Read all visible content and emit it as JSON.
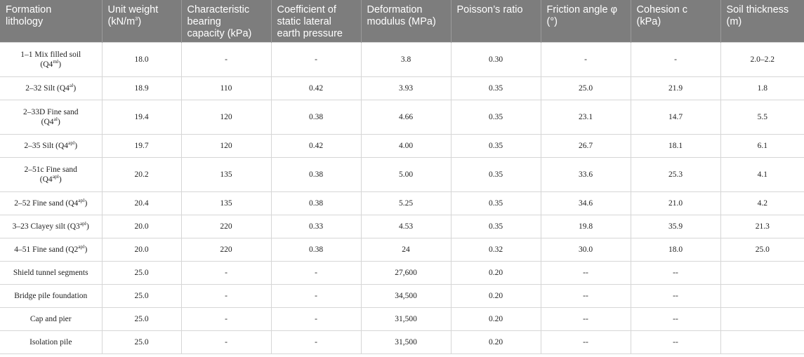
{
  "headers": [
    {
      "line1": "Formation",
      "line2": "lithology",
      "line3": ""
    },
    {
      "line1": "Unit weight",
      "line2": "(kN/m",
      "sup": "3",
      "after": ")"
    },
    {
      "line1": "Characteristic",
      "line2": "bearing",
      "line3": "capacity (kPa)"
    },
    {
      "line1": "Coefficient of",
      "line2": "static lateral",
      "line3": "earth pressure"
    },
    {
      "line1": "Deformation",
      "line2": "modulus (MPa)",
      "line3": ""
    },
    {
      "line1": "Poisson’s ratio",
      "line2": "",
      "line3": ""
    },
    {
      "line1": "Friction angle φ",
      "line2": "(°)",
      "line3": ""
    },
    {
      "line1": "Cohesion c",
      "line2": "(kPa)",
      "line3": ""
    },
    {
      "line1": "Soil thickness",
      "line2": "(m)",
      "line3": ""
    }
  ],
  "rows": [
    {
      "tall": true,
      "name": "1–1 Mix filled soil",
      "name2": "(Q4",
      "sup": "ml",
      "name_after": ")",
      "cells": [
        "18.0",
        "-",
        "-",
        "3.8",
        "0.30",
        "-",
        "-",
        "2.0–2.2"
      ]
    },
    {
      "tall": false,
      "name": "2–32 Silt (Q4",
      "name2": "",
      "sup": "al",
      "name_after": ")",
      "cells": [
        "18.9",
        "110",
        "0.42",
        "3.93",
        "0.35",
        "25.0",
        "21.9",
        "1.8"
      ]
    },
    {
      "tall": true,
      "name": "2–33D Fine sand",
      "name2": "(Q4",
      "sup": "al",
      "name_after": ")",
      "cells": [
        "19.4",
        "120",
        "0.38",
        "4.66",
        "0.35",
        "23.1",
        "14.7",
        "5.5"
      ]
    },
    {
      "tall": false,
      "name": "2–35 Silt (Q4",
      "name2": "",
      "sup": "apl",
      "name_after": ")",
      "cells": [
        "19.7",
        "120",
        "0.42",
        "4.00",
        "0.35",
        "26.7",
        "18.1",
        "6.1"
      ]
    },
    {
      "tall": true,
      "name": "2–51c Fine sand",
      "name2": "(Q4",
      "sup": "apl",
      "name_after": ")",
      "cells": [
        "20.2",
        "135",
        "0.38",
        "5.00",
        "0.35",
        "33.6",
        "25.3",
        "4.1"
      ]
    },
    {
      "tall": false,
      "name": "2–52 Fine sand (Q4",
      "name2": "",
      "sup": "apl",
      "name_after": ")",
      "cells": [
        "20.4",
        "135",
        "0.38",
        "5.25",
        "0.35",
        "34.6",
        "21.0",
        "4.2"
      ]
    },
    {
      "tall": false,
      "name": "3–23 Clayey silt (Q3",
      "name2": "",
      "sup": "apl",
      "name_after": ")",
      "cells": [
        "20.0",
        "220",
        "0.33",
        "4.53",
        "0.35",
        "19.8",
        "35.9",
        "21.3"
      ]
    },
    {
      "tall": false,
      "name": "4–51 Fine sand (Q2",
      "name2": "",
      "sup": "apl",
      "name_after": ")",
      "cells": [
        "20.0",
        "220",
        "0.38",
        "24",
        "0.32",
        "30.0",
        "18.0",
        "25.0"
      ]
    },
    {
      "tall": false,
      "name": "Shield tunnel segments",
      "name2": "",
      "sup": "",
      "name_after": "",
      "cells": [
        "25.0",
        "-",
        "-",
        "27,600",
        "0.20",
        "--",
        "--",
        ""
      ]
    },
    {
      "tall": false,
      "name": "Bridge pile foundation",
      "name2": "",
      "sup": "",
      "name_after": "",
      "cells": [
        "25.0",
        "-",
        "-",
        "34,500",
        "0.20",
        "--",
        "--",
        ""
      ]
    },
    {
      "tall": false,
      "name": "Cap and pier",
      "name2": "",
      "sup": "",
      "name_after": "",
      "cells": [
        "25.0",
        "-",
        "-",
        "31,500",
        "0.20",
        "--",
        "--",
        ""
      ]
    },
    {
      "tall": false,
      "name": "Isolation pile",
      "name2": "",
      "sup": "",
      "name_after": "",
      "cells": [
        "25.0",
        "-",
        "-",
        "31,500",
        "0.20",
        "--",
        "--",
        ""
      ]
    }
  ]
}
